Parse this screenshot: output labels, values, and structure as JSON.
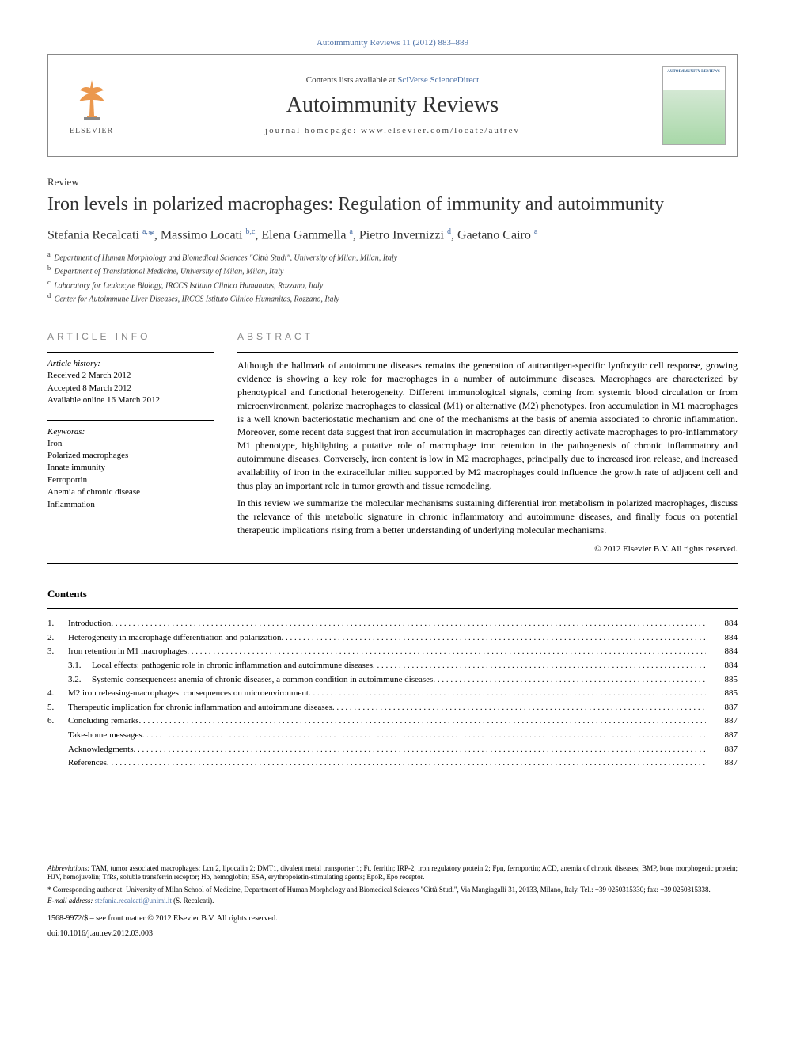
{
  "top_link": "Autoimmunity Reviews 11 (2012) 883–889",
  "header": {
    "contents_prefix": "Contents lists available at ",
    "contents_link": "SciVerse ScienceDirect",
    "journal": "Autoimmunity Reviews",
    "homepage_prefix": "journal homepage: ",
    "homepage": "www.elsevier.com/locate/autrev",
    "publisher": "ELSEVIER",
    "cover_label": "AUTOIMMUNITY REVIEWS"
  },
  "article_type": "Review",
  "title": "Iron levels in polarized macrophages: Regulation of immunity and autoimmunity",
  "authors_html": "Stefania Recalcati <sup>a,</sup><span class='star'>*</span>, Massimo Locati <sup>b,c</sup>, Elena Gammella <sup>a</sup>, Pietro Invernizzi <sup>d</sup>, Gaetano Cairo <sup>a</sup>",
  "affiliations": [
    {
      "sup": "a",
      "text": "Department of Human Morphology and Biomedical Sciences \"Città Studi\", University of Milan, Milan, Italy"
    },
    {
      "sup": "b",
      "text": "Department of Translational Medicine, University of Milan, Milan, Italy"
    },
    {
      "sup": "c",
      "text": "Laboratory for Leukocyte Biology, IRCCS Istituto Clinico Humanitas, Rozzano, Italy"
    },
    {
      "sup": "d",
      "text": "Center for Autoimmune Liver Diseases, IRCCS Istituto Clinico Humanitas, Rozzano, Italy"
    }
  ],
  "info": {
    "header": "ARTICLE INFO",
    "history_label": "Article history:",
    "history": [
      "Received 2 March 2012",
      "Accepted 8 March 2012",
      "Available online 16 March 2012"
    ],
    "keywords_label": "Keywords:",
    "keywords": [
      "Iron",
      "Polarized macrophages",
      "Innate immunity",
      "Ferroportin",
      "Anemia of chronic disease",
      "Inflammation"
    ]
  },
  "abstract": {
    "header": "ABSTRACT",
    "p1": "Although the hallmark of autoimmune diseases remains the generation of autoantigen-specific lynfocytic cell response, growing evidence is showing a key role for macrophages in a number of autoimmune diseases. Macrophages are characterized by phenotypical and functional heterogeneity. Different immunological signals, coming from systemic blood circulation or from microenvironment, polarize macrophages to classical (M1) or alternative (M2) phenotypes. Iron accumulation in M1 macrophages is a well known bacteriostatic mechanism and one of the mechanisms at the basis of anemia associated to chronic inflammation. Moreover, some recent data suggest that iron accumulation in macrophages can directly activate macrophages to pro-inflammatory M1 phenotype, highlighting a putative role of macrophage iron retention in the pathogenesis of chronic inflammatory and autoimmune diseases. Conversely, iron content is low in M2 macrophages, principally due to increased iron release, and increased availability of iron in the extracellular milieu supported by M2 macrophages could influence the growth rate of adjacent cell and thus play an important role in tumor growth and tissue remodeling.",
    "p2": "In this review we summarize the molecular mechanisms sustaining differential iron metabolism in polarized macrophages, discuss the relevance of this metabolic signature in chronic inflammatory and autoimmune diseases, and finally focus on potential therapeutic implications rising from a better understanding of underlying molecular mechanisms.",
    "copyright": "© 2012 Elsevier B.V. All rights reserved."
  },
  "contents": {
    "title": "Contents",
    "items": [
      {
        "num": "1.",
        "title": "Introduction",
        "page": "884",
        "sub": false
      },
      {
        "num": "2.",
        "title": "Heterogeneity in macrophage differentiation and polarization",
        "page": "884",
        "sub": false
      },
      {
        "num": "3.",
        "title": "Iron retention in M1 macrophages",
        "page": "884",
        "sub": false
      },
      {
        "num": "3.1.",
        "title": "Local effects: pathogenic role in chronic inflammation and autoimmune diseases",
        "page": "884",
        "sub": true
      },
      {
        "num": "3.2.",
        "title": "Systemic consequences: anemia of chronic diseases, a common condition in autoimmune diseases",
        "page": "885",
        "sub": true
      },
      {
        "num": "4.",
        "title": "M2 iron releasing-macrophages: consequences on microenvironment",
        "page": "885",
        "sub": false
      },
      {
        "num": "5.",
        "title": "Therapeutic implication for chronic inflammation and autoimmune diseases",
        "page": "887",
        "sub": false
      },
      {
        "num": "6.",
        "title": "Concluding remarks",
        "page": "887",
        "sub": false
      },
      {
        "num": "",
        "title": "Take-home messages",
        "page": "887",
        "sub": false
      },
      {
        "num": "",
        "title": "Acknowledgments",
        "page": "887",
        "sub": false
      },
      {
        "num": "",
        "title": "References",
        "page": "887",
        "sub": false
      }
    ]
  },
  "footer": {
    "abbrev_label": "Abbreviations:",
    "abbrev": " TAM, tumor associated macrophages; Lcn 2, lipocalin 2; DMT1, divalent metal transporter 1; Ft, ferritin; IRP-2, iron regulatory protein 2; Fpn, ferroportin; ACD, anemia of chronic diseases; BMP, bone morphogenic protein; HJV, hemojuvelin; TfRs, soluble transferrin receptor; Hb, hemoglobin; ESA, erythropoietin-stimulating agents; EpoR, Epo receptor.",
    "corr": "* Corresponding author at: University of Milan School of Medicine, Department of Human Morphology and Biomedical Sciences \"Città Studi\", Via Mangiagalli 31, 20133, Milano, Italy. Tel.: +39 0250315330; fax: +39 0250315338.",
    "email_label": "E-mail address: ",
    "email": "stefania.recalcati@unimi.it",
    "email_suffix": " (S. Recalcati).",
    "issn": "1568-9972/$ – see front matter © 2012 Elsevier B.V. All rights reserved.",
    "doi": "doi:10.1016/j.autrev.2012.03.003"
  },
  "colors": {
    "link": "#4a6fa5",
    "text": "#000000",
    "muted": "#888888"
  }
}
